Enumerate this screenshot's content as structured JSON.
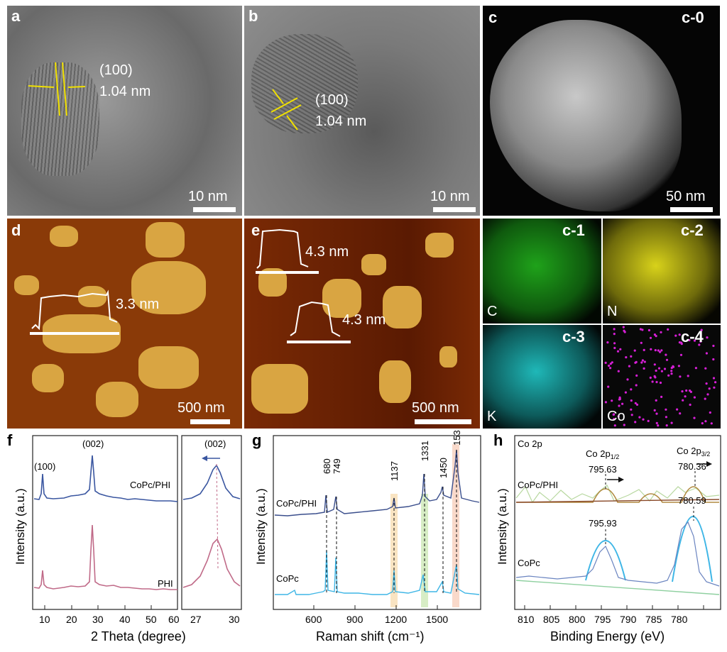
{
  "panels": {
    "a": {
      "label": "a",
      "plane": "(100)",
      "spacing": "1.04 nm",
      "scale": "10 nm"
    },
    "b": {
      "label": "b",
      "plane": "(100)",
      "spacing": "1.04 nm",
      "scale": "10 nm"
    },
    "c0": {
      "label": "c",
      "sublabel": "c-0",
      "scale": "50 nm"
    },
    "c1": {
      "label": "c-1",
      "element": "C",
      "color": "#1fa21a"
    },
    "c2": {
      "label": "c-2",
      "element": "N",
      "color": "#d8d21a"
    },
    "c3": {
      "label": "c-3",
      "element": "K",
      "color": "#1fb8b8"
    },
    "c4": {
      "label": "c-4",
      "element": "Co",
      "color": "#d61fd6"
    },
    "d": {
      "label": "d",
      "height": "3.3 nm",
      "scale": "500 nm"
    },
    "e": {
      "label": "e",
      "height1": "4.3 nm",
      "height2": "4.3 nm",
      "scale": "500 nm"
    },
    "f": {
      "label": "f",
      "ylabel": "Intensity (a.u.)",
      "xlabel": "2 Theta (degree)",
      "series1": "CoPc/PHI",
      "series2": "PHI",
      "peak1": "(100)",
      "peak2": "(002)",
      "inset_peak": "(002)",
      "ticks_main": [
        "10",
        "20",
        "30",
        "40",
        "50",
        "60"
      ],
      "ticks_inset": [
        "27",
        "30"
      ]
    },
    "g": {
      "label": "g",
      "ylabel": "Intensity (a.u.)",
      "xlabel": "Raman shift (cm⁻¹)",
      "series1": "CoPc/PHI",
      "series2": "CoPc",
      "peaks": [
        "680",
        "749",
        "1137",
        "1331",
        "1450",
        "1532"
      ],
      "ticks": [
        "600",
        "900",
        "1200",
        "1500"
      ]
    },
    "h": {
      "label": "h",
      "ylabel": "Intensity (a.u.)",
      "xlabel": "Binding Energy (eV)",
      "title": "Co 2p",
      "series1": "CoPc/PHI",
      "series2": "CoPc",
      "peak_label_1": "Co 2p",
      "peak_label_1_sub": "1/2",
      "peak_label_2": "Co 2p",
      "peak_label_2_sub": "3/2",
      "v1": "795.63",
      "v2": "780.36",
      "v3": "795.93",
      "v4": "780.59",
      "ticks": [
        "810",
        "805",
        "800",
        "795",
        "790",
        "785",
        "780"
      ]
    }
  }
}
